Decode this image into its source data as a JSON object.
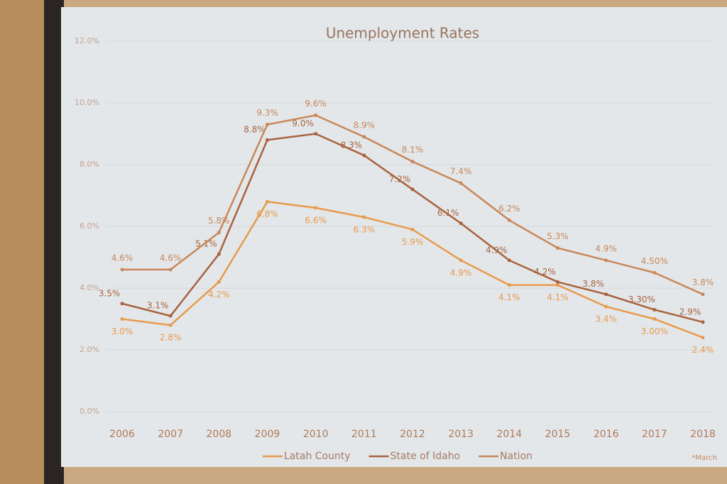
{
  "chart_data": {
    "type": "line",
    "title": "Unemployment Rates",
    "categories": [
      "2006",
      "2007",
      "2008",
      "2009",
      "2010",
      "2011",
      "2012",
      "2013",
      "2014",
      "2015",
      "2016",
      "2017",
      "2018"
    ],
    "series": [
      {
        "name": "Latah County",
        "color": "#e89a4c",
        "values": [
          3.0,
          2.8,
          4.2,
          6.8,
          6.6,
          6.3,
          5.9,
          4.9,
          4.1,
          4.1,
          3.4,
          3.0,
          2.4
        ],
        "value_labels": [
          "3.0%",
          "2.8%",
          "4.2%",
          "6.8%",
          "6.6%",
          "6.3%",
          "5.9%",
          "4.9%",
          "4.1%",
          "4.1%",
          "3.4%",
          "3.00%",
          "2.4%"
        ]
      },
      {
        "name": "State of Idaho",
        "color": "#a8623e",
        "values": [
          3.5,
          3.1,
          5.1,
          8.8,
          9.0,
          8.3,
          7.2,
          6.1,
          4.9,
          4.2,
          3.8,
          3.3,
          2.9
        ],
        "value_labels": [
          "3.5%",
          "3.1%",
          "5.1%",
          "8.8%",
          "9.0%",
          "8.3%",
          "7.2%",
          "6.1%",
          "4.9%",
          "4.2%",
          "3.8%",
          "3.30%",
          "2.9%"
        ]
      },
      {
        "name": "Nation",
        "color": "#c8875a",
        "values": [
          4.6,
          4.6,
          5.8,
          9.3,
          9.6,
          8.9,
          8.1,
          7.4,
          6.2,
          5.3,
          4.9,
          4.5,
          3.8
        ],
        "value_labels": [
          "4.6%",
          "4.6%",
          "5.8%",
          "9.3%",
          "9.6%",
          "8.9%",
          "8.1%",
          "7.4%",
          "6.2%",
          "5.3%",
          "4.9%",
          "4.50%",
          "3.8%"
        ]
      }
    ],
    "ylim": [
      0,
      12
    ],
    "yticks": [
      {
        "value": 0,
        "label": "0.0%"
      },
      {
        "value": 2,
        "label": "2.0%"
      },
      {
        "value": 4,
        "label": "4.0%"
      },
      {
        "value": 6,
        "label": "6.0%"
      },
      {
        "value": 8,
        "label": "8.0%"
      },
      {
        "value": 10,
        "label": "10.0%"
      },
      {
        "value": 12,
        "label": "12.0%"
      }
    ],
    "grid": true,
    "legend": "bottom",
    "footnote": "*March"
  }
}
